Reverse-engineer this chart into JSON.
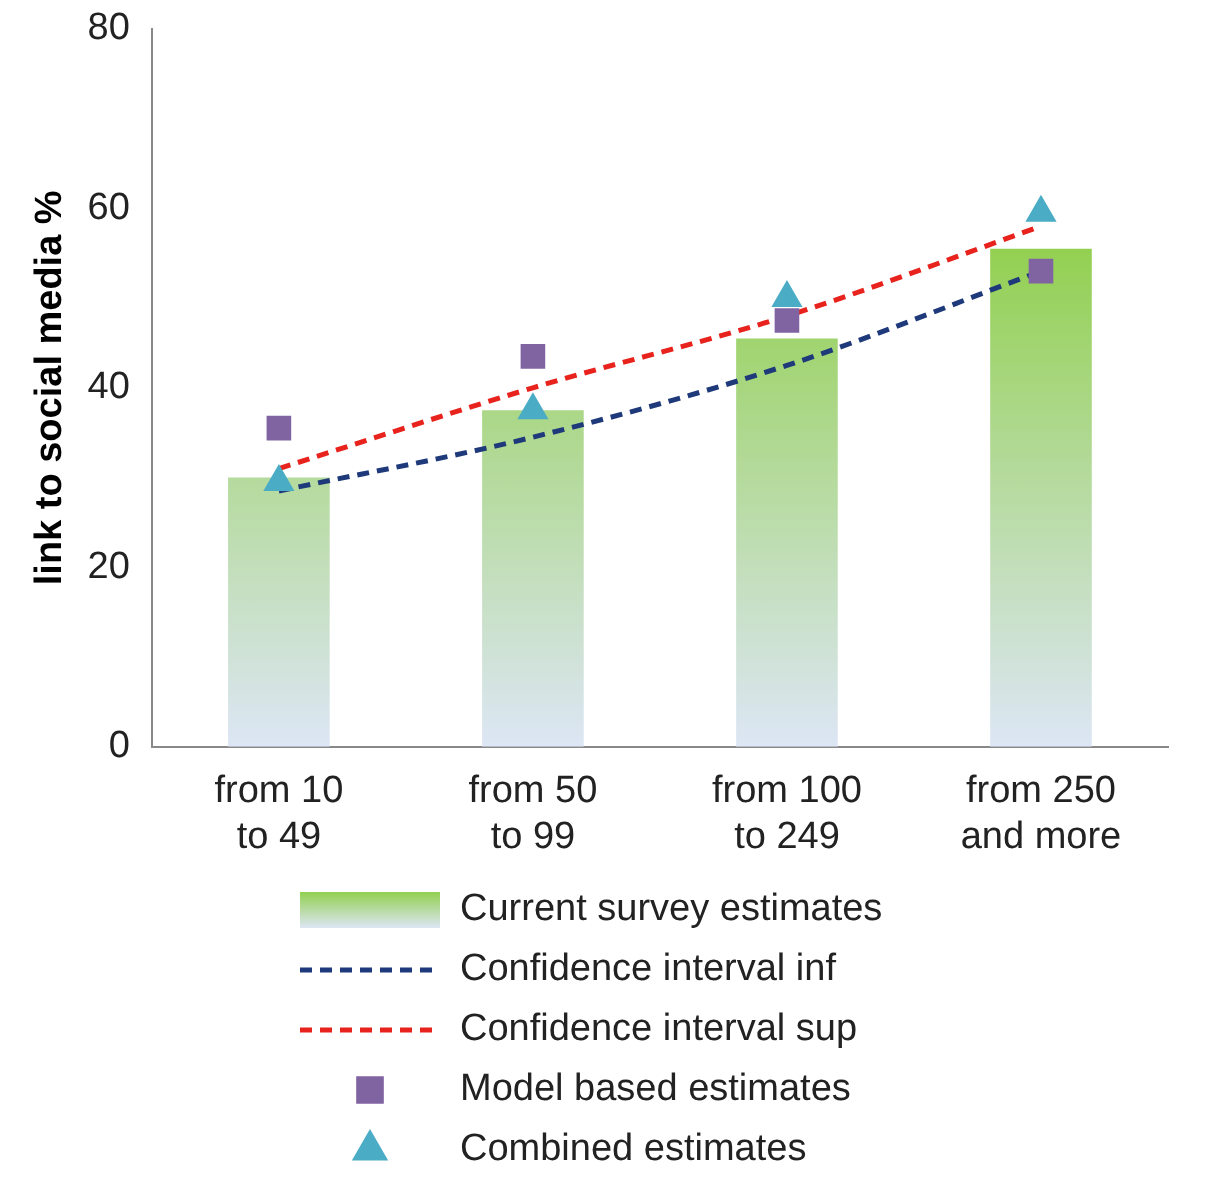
{
  "chart_data": {
    "type": "bar",
    "ylabel": "link to social media %",
    "categories": [
      "from 10 to 49",
      "from 50 to 99",
      "from 100 to 249",
      "from 250 and more"
    ],
    "ylim": [
      0,
      80
    ],
    "yticks": [
      0,
      20,
      40,
      60,
      80
    ],
    "grid": false,
    "legend": "bottom",
    "series": [
      {
        "name": "Current survey estimates",
        "color": "#92d050",
        "values": [
          30,
          37.5,
          45.5,
          55.5
        ]
      },
      {
        "name": "Confidence interval inf",
        "type": "line",
        "color": "#1f3a7a",
        "line_style": "dashed",
        "marker": "none",
        "values": [
          28.5,
          34.5,
          42.5,
          53
        ]
      },
      {
        "name": "Confidence interval sup",
        "type": "line",
        "color": "#e8221c",
        "line_style": "dashed",
        "marker": "none",
        "values": [
          31,
          40,
          48,
          58
        ]
      },
      {
        "name": "Model based estimates",
        "type": "scatter",
        "color": "#8064a2",
        "marker": "square",
        "values": [
          35.5,
          43.5,
          47.5,
          53
        ]
      },
      {
        "name": "Combined estimates",
        "type": "scatter",
        "color": "#4bacc6",
        "marker": "triangle",
        "values": [
          29.5,
          37.5,
          50,
          59.5
        ]
      }
    ]
  }
}
